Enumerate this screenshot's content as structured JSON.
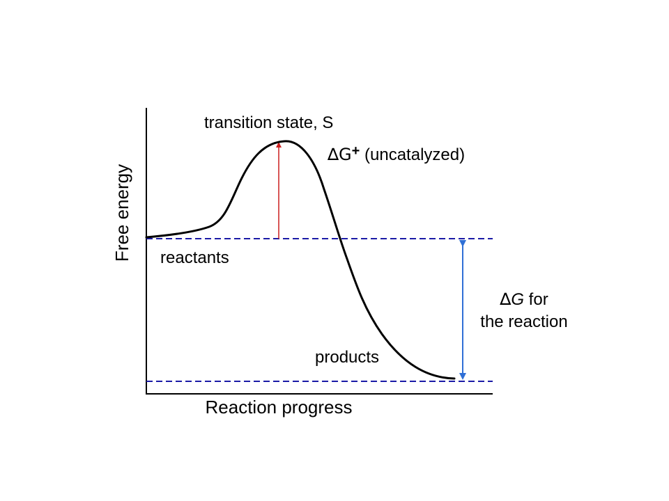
{
  "colors": {
    "axis": "#000000",
    "curve": "#000000",
    "dashed_level": "#1a1aa6",
    "activation_arrow": "#cc1f1f",
    "delta_g_arrow": "#2f6fd6",
    "text": "#000000"
  },
  "axes": {
    "y_label": "Free energy",
    "x_label": "Reaction progress"
  },
  "labels": {
    "transition_state": "transition state, S",
    "activation_symbol": "∆G",
    "activation_superscript": "+",
    "activation_text": " (uncatalyzed)",
    "reactants": "reactants",
    "products": "products",
    "delta_g_symbol": "∆",
    "delta_g_italic": "G",
    "delta_g_rest": " for",
    "delta_g_line2": "the reaction"
  }
}
